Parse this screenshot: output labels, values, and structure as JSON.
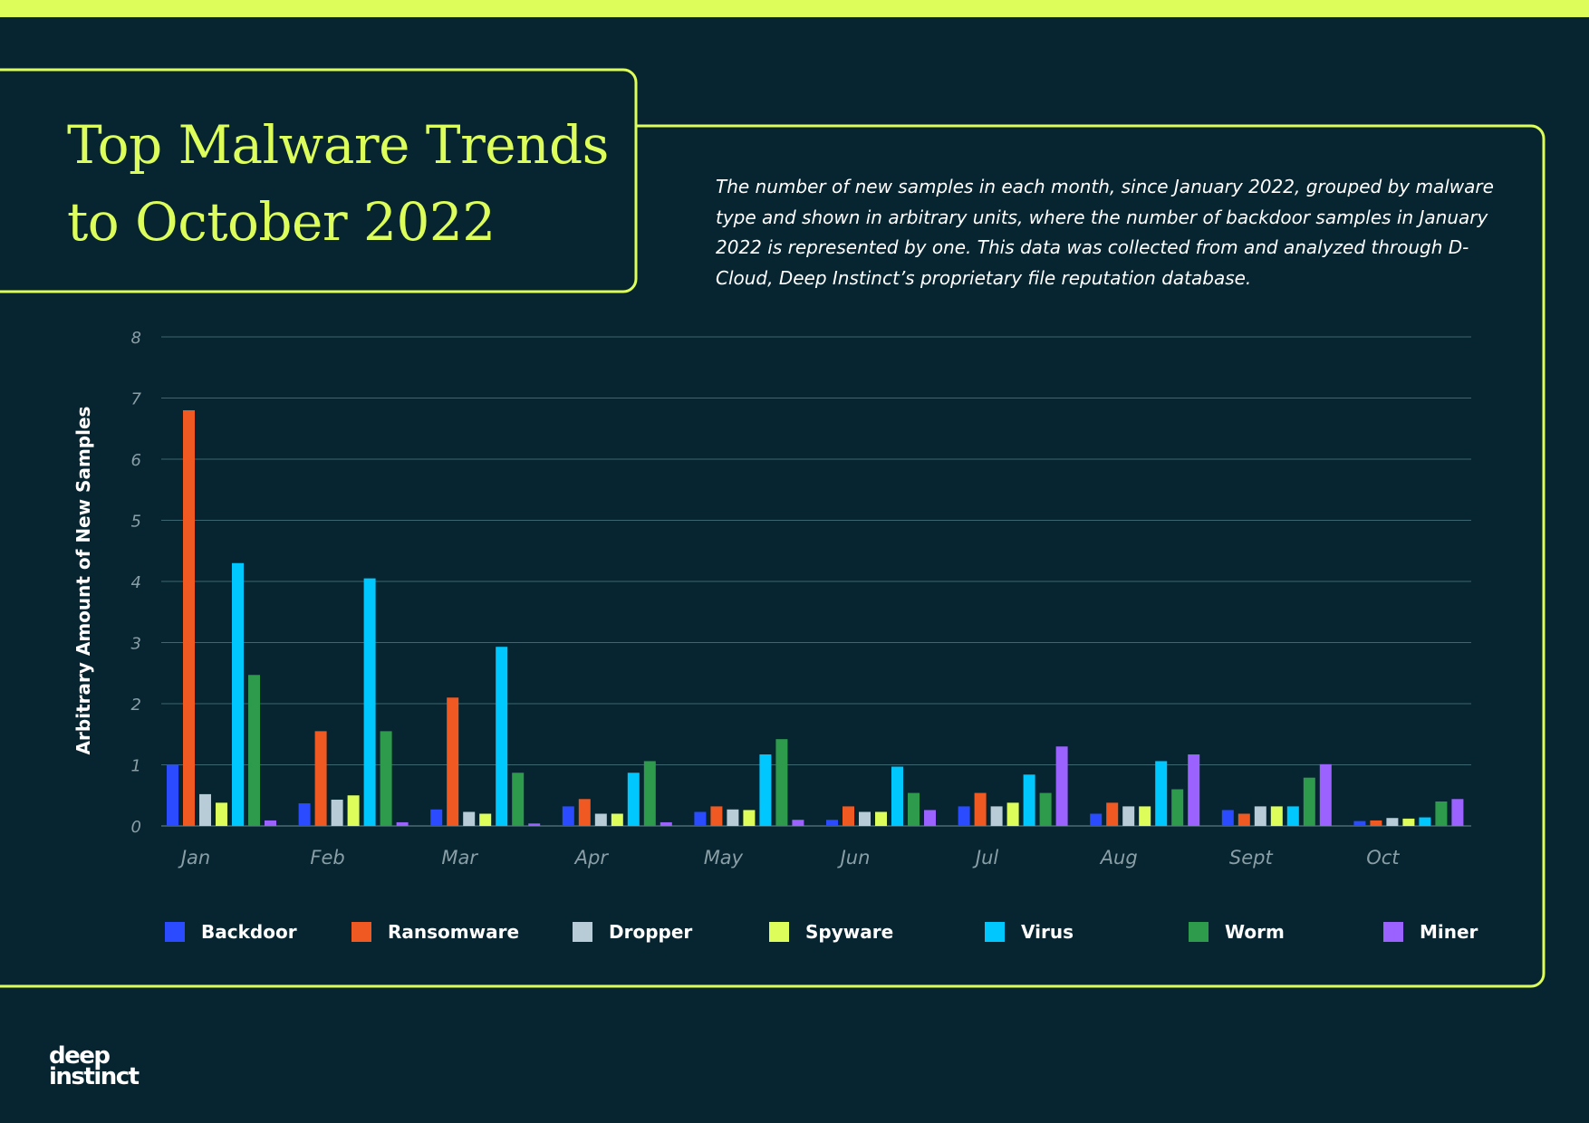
{
  "header": {
    "title_line1": "Top Malware Trends",
    "title_line2": "to October 2022",
    "description": "The number of new samples in each month, since January 2022, grouped by malware type and shown in arbitrary units, where the number of backdoor samples in January 2022 is represented by one. This data was collected from and analyzed through D-Cloud, Deep Instinct’s proprietary file reputation database."
  },
  "brand": {
    "line1": "deep",
    "line2": "instinct"
  },
  "colors": {
    "background": "#062530",
    "accent": "#DDFE5A",
    "grid": "#3E6670",
    "tick_text": "#8A9EA6"
  },
  "chart_data": {
    "type": "bar",
    "categories": [
      "Jan",
      "Feb",
      "Mar",
      "Apr",
      "May",
      "Jun",
      "Jul",
      "Aug",
      "Sept",
      "Oct"
    ],
    "ylabel": "Arbitrary Amount of New Samples",
    "ylim": [
      0,
      8
    ],
    "yticks": [
      0,
      1,
      2,
      3,
      4,
      5,
      6,
      7,
      8
    ],
    "grid": true,
    "legend_position": "bottom",
    "series": [
      {
        "name": "Backdoor",
        "color": "#2A4BFF",
        "values": [
          1.0,
          0.37,
          0.27,
          0.32,
          0.23,
          0.1,
          0.32,
          0.2,
          0.26,
          0.08
        ]
      },
      {
        "name": "Ransomware",
        "color": "#F05A22",
        "values": [
          6.8,
          1.55,
          2.1,
          0.44,
          0.32,
          0.32,
          0.54,
          0.38,
          0.2,
          0.09
        ]
      },
      {
        "name": "Dropper",
        "color": "#B7CCD6",
        "values": [
          0.52,
          0.43,
          0.23,
          0.2,
          0.27,
          0.23,
          0.32,
          0.32,
          0.32,
          0.13
        ]
      },
      {
        "name": "Spyware",
        "color": "#DDFE5A",
        "values": [
          0.38,
          0.5,
          0.2,
          0.2,
          0.26,
          0.23,
          0.38,
          0.32,
          0.32,
          0.12
        ]
      },
      {
        "name": "Virus",
        "color": "#00C8FF",
        "values": [
          4.3,
          4.05,
          2.93,
          0.87,
          1.17,
          0.97,
          0.84,
          1.06,
          0.32,
          0.14
        ]
      },
      {
        "name": "Worm",
        "color": "#2E9A4C",
        "values": [
          2.47,
          1.55,
          0.87,
          1.06,
          1.42,
          0.54,
          0.54,
          0.6,
          0.79,
          0.4
        ]
      },
      {
        "name": "Miner",
        "color": "#9B62FF",
        "values": [
          0.09,
          0.06,
          0.04,
          0.06,
          0.1,
          0.26,
          1.3,
          1.17,
          1.01,
          0.44
        ]
      }
    ]
  }
}
